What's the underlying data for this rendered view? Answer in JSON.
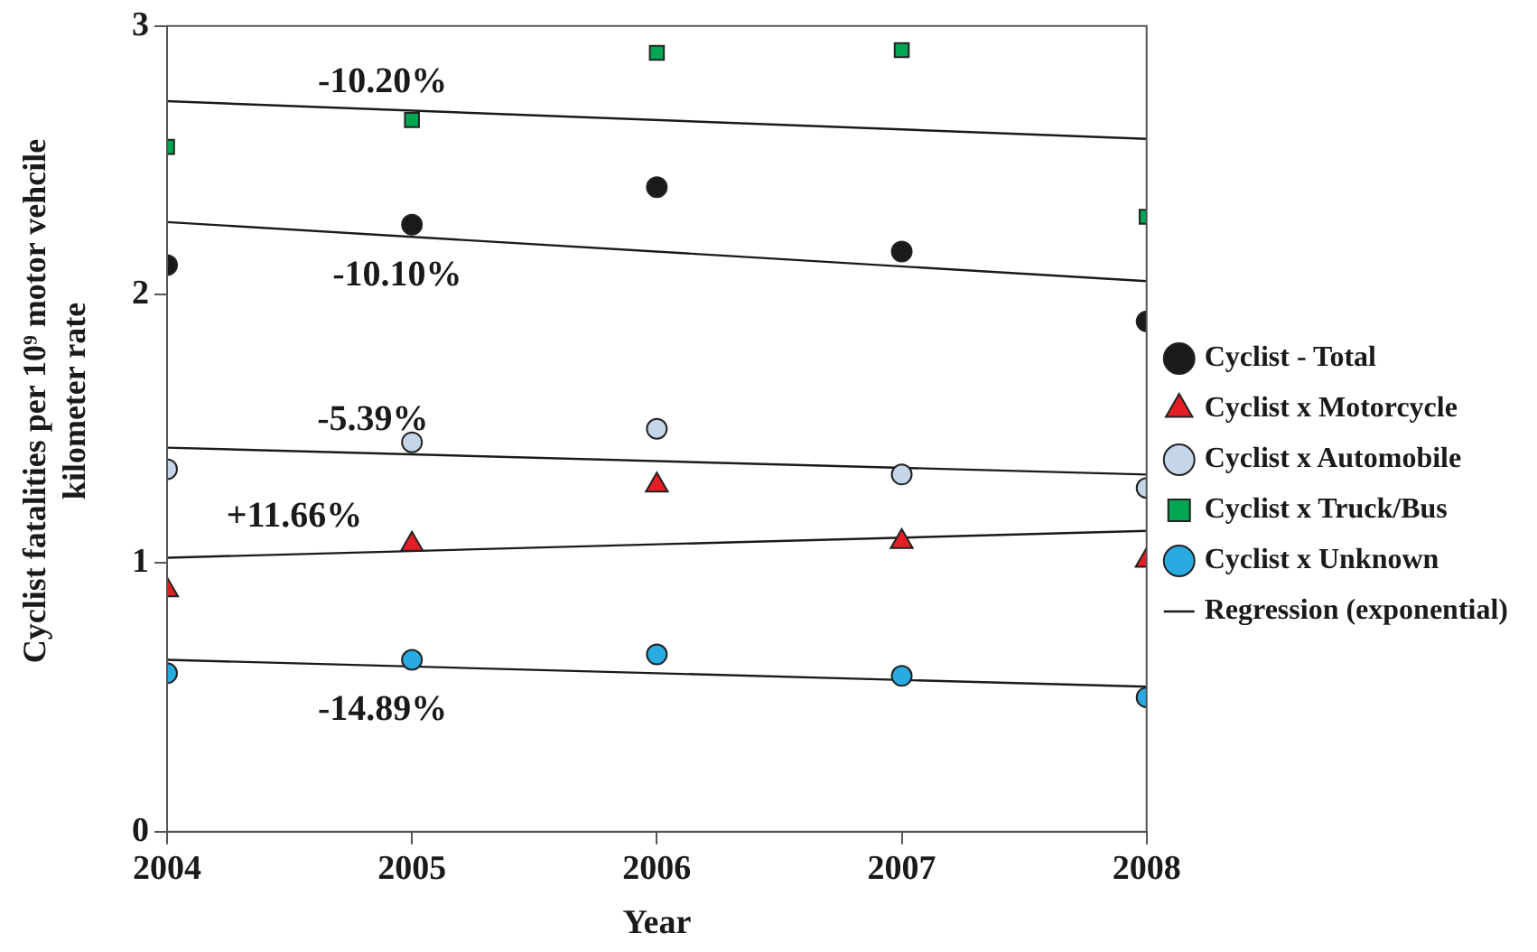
{
  "chart_data": {
    "type": "scatter",
    "xlabel": "Year",
    "ylabel": "Cyclist fatalities per 10⁹ motor vehcile kilometer rate",
    "xlim": [
      2004,
      2008
    ],
    "xticks": [
      2004,
      2005,
      2006,
      2007,
      2008
    ],
    "ylim": [
      0,
      3
    ],
    "yticks": [
      0,
      1,
      2,
      3
    ],
    "grid": false,
    "legend": "right",
    "series": [
      {
        "name": "Cyclist - Total",
        "color": "#1a1a1a",
        "marker": "circle",
        "x": [
          2004,
          2005,
          2006,
          2007,
          2008
        ],
        "values": [
          2.11,
          2.26,
          2.4,
          2.16,
          1.9
        ]
      },
      {
        "name": "Cyclist x Motorcycle",
        "color": "#e31e24",
        "marker": "triangle",
        "x": [
          2004,
          2005,
          2006,
          2007,
          2008
        ],
        "values": [
          0.9,
          1.07,
          1.29,
          1.08,
          1.01
        ]
      },
      {
        "name": "Cyclist x Automobile",
        "color": "#c5d5ea",
        "marker": "circle",
        "x": [
          2004,
          2005,
          2006,
          2007,
          2008
        ],
        "values": [
          1.35,
          1.45,
          1.5,
          1.33,
          1.28
        ]
      },
      {
        "name": "Cyclist x Truck/Bus",
        "color": "#00a651",
        "marker": "square",
        "x": [
          2004,
          2005,
          2006,
          2007,
          2008
        ],
        "values": [
          2.55,
          2.65,
          2.9,
          2.91,
          2.29
        ]
      },
      {
        "name": "Cyclist x Unknown",
        "color": "#29abe2",
        "marker": "circle",
        "x": [
          2004,
          2005,
          2006,
          2007,
          2008
        ],
        "values": [
          0.59,
          0.64,
          0.66,
          0.58,
          0.5
        ]
      },
      {
        "name": "Regression (exponential)",
        "type": "line",
        "color": "#1a1a1a",
        "marker": "none",
        "line_style": "solid",
        "x": [
          2004,
          2008
        ],
        "values": [
          0.64,
          0.54
        ]
      },
      {
        "type": "line",
        "color": "#1a1a1a",
        "marker": "none",
        "line_style": "solid",
        "x": [
          2004,
          2008
        ],
        "values": [
          2.72,
          2.58
        ]
      },
      {
        "type": "line",
        "color": "#1a1a1a",
        "marker": "none",
        "line_style": "solid",
        "x": [
          2004,
          2008
        ],
        "values": [
          2.27,
          2.05
        ]
      },
      {
        "type": "line",
        "color": "#1a1a1a",
        "marker": "none",
        "line_style": "solid",
        "x": [
          2004,
          2008
        ],
        "values": [
          1.43,
          1.33
        ]
      },
      {
        "type": "line",
        "color": "#1a1a1a",
        "marker": "none",
        "line_style": "solid",
        "x": [
          2004,
          2008
        ],
        "values": [
          1.02,
          1.12
        ]
      }
    ],
    "annotations": [
      "-10.20%",
      "-10.10%",
      "-5.39%",
      "+11.66%",
      "-14.89%"
    ]
  }
}
